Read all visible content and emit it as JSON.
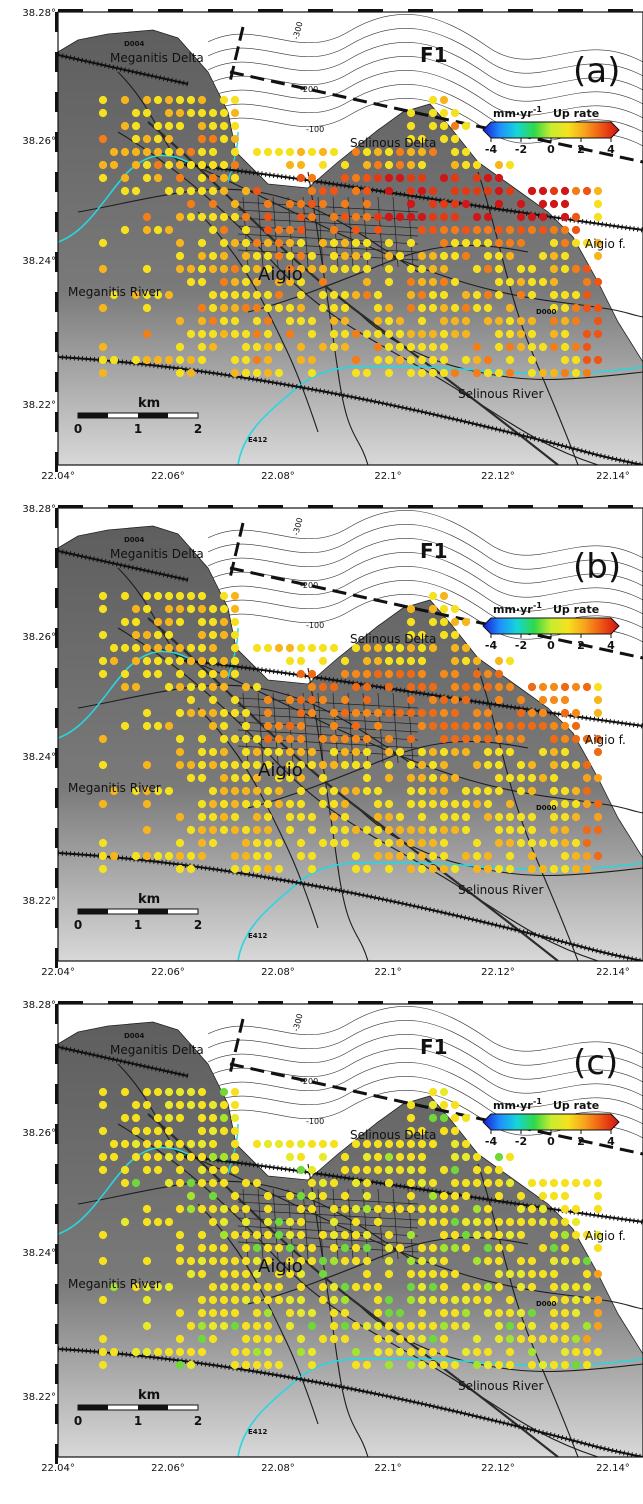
{
  "panels": [
    {
      "label": "(a)",
      "mode": "high"
    },
    {
      "label": "(b)",
      "mode": "medium"
    },
    {
      "label": "(c)",
      "mode": "low"
    }
  ],
  "axes": {
    "lat_ticks": [
      "38.28°",
      "38.26°",
      "38.24°",
      "38.22°"
    ],
    "lon_ticks": [
      "22.04°",
      "22.06°",
      "22.08°",
      "22.1°",
      "22.12°",
      "22.14°"
    ]
  },
  "labels": {
    "fault": "F1",
    "code_top": "D004",
    "code_east": "D000",
    "code_road": "E412",
    "meganitis_delta": "Meganitis Delta",
    "selinous_delta": "Selinous Delta",
    "town": "Aigio",
    "aigio_fault": "Aigio f.",
    "meganitis_river": "Meganitis River",
    "selinous_river": "Selinous River",
    "contour_300": "-300",
    "contour_200": "-200",
    "contour_100": "-100"
  },
  "scalebar": {
    "unit": "km",
    "ticks": [
      "0",
      "1",
      "2"
    ]
  },
  "colorbar": {
    "title_unit": "mm·yr",
    "title_exp": "-1",
    "title_text": "Up rate",
    "ticks": [
      "-4",
      "-2",
      "0",
      "2",
      "4"
    ],
    "colors": [
      "#1a1acc",
      "#1f8fff",
      "#15d6d6",
      "#2fd84a",
      "#c7ec2e",
      "#f6e11e",
      "#f7a21c",
      "#ee5414",
      "#cf1212"
    ]
  },
  "colors": {
    "land": "#6c6c6c",
    "sea": "#ffffff",
    "river": "#27d7e0",
    "roads": "#222222"
  }
}
